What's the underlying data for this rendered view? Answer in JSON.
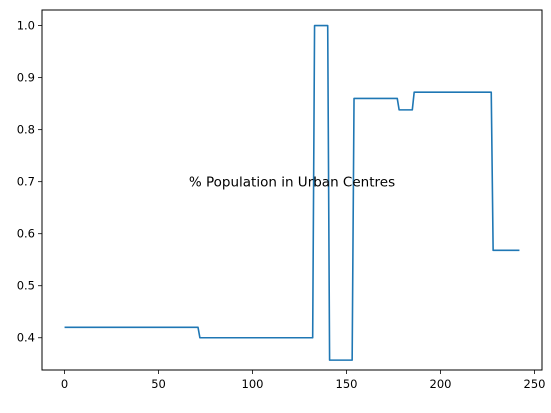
{
  "chart_data": {
    "type": "line",
    "title": "% Population in Urban Centres",
    "xlabel": "",
    "ylabel": "",
    "xlim": [
      -12,
      254
    ],
    "ylim": [
      0.338,
      1.03
    ],
    "x_ticks": [
      0,
      50,
      100,
      150,
      200,
      250
    ],
    "y_ticks": [
      0.4,
      0.5,
      0.6,
      0.7,
      0.8,
      0.9,
      1.0
    ],
    "x_tick_labels": [
      "0",
      "50",
      "100",
      "150",
      "200",
      "250"
    ],
    "y_tick_labels": [
      "0.4",
      "0.5",
      "0.6",
      "0.7",
      "0.8",
      "0.9",
      "1.0"
    ],
    "grid": false,
    "line_color": "#1f77b4",
    "series": [
      {
        "x": [
          0,
          71,
          72,
          132,
          133,
          140,
          141,
          153,
          154,
          177,
          178,
          185,
          186,
          227,
          228,
          242
        ],
        "y": [
          0.42,
          0.42,
          0.4,
          0.4,
          1.0,
          1.0,
          0.357,
          0.357,
          0.86,
          0.86,
          0.838,
          0.838,
          0.872,
          0.872,
          0.568,
          0.568
        ]
      }
    ]
  }
}
